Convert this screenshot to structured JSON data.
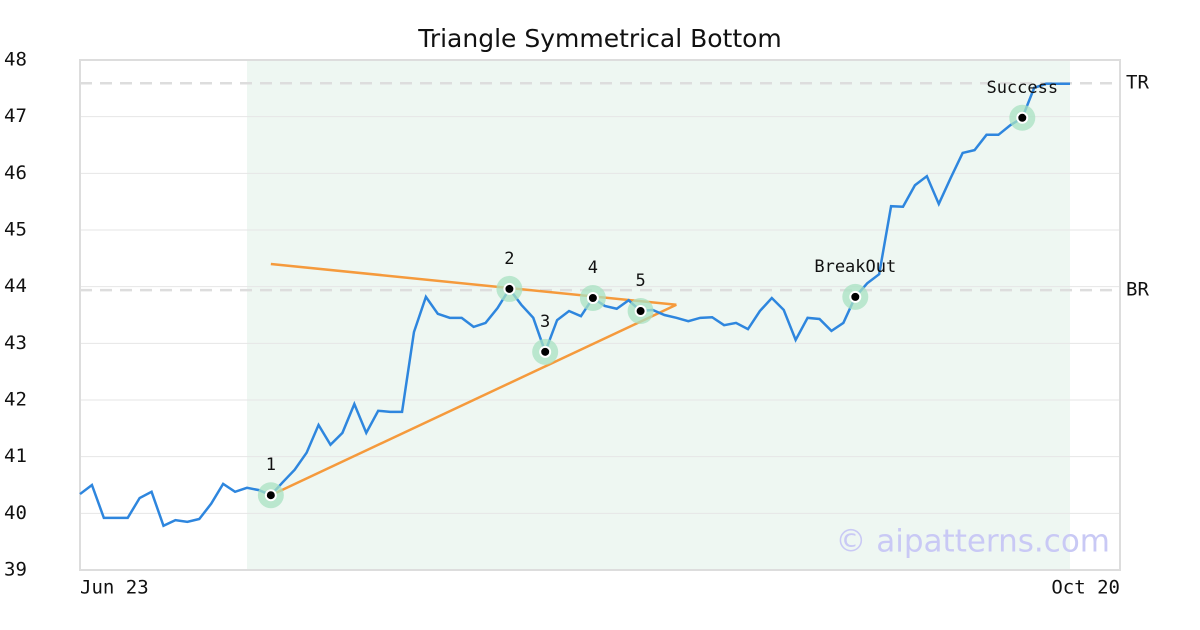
{
  "chart_data": {
    "type": "line",
    "title": "Triangle Symmetrical Bottom",
    "categories": [
      "Jun 23",
      null,
      null,
      null,
      null,
      null,
      null,
      null,
      null,
      null,
      null,
      null,
      null,
      null,
      null,
      null,
      null,
      null,
      null,
      null,
      null,
      null,
      null,
      null,
      null,
      null,
      null,
      null,
      null,
      null,
      null,
      null,
      null,
      null,
      null,
      null,
      null,
      null,
      null,
      null,
      null,
      null,
      null,
      null,
      null,
      null,
      null,
      null,
      null,
      null,
      null,
      null,
      null,
      null,
      null,
      null,
      null,
      null,
      null,
      null,
      null,
      null,
      null,
      null,
      null,
      null,
      null,
      null,
      null,
      null,
      null,
      null,
      null,
      null,
      null,
      null,
      null,
      null,
      null,
      null,
      null,
      null,
      null,
      "Oct 20"
    ],
    "series": [
      {
        "color": "#2e86de",
        "values": [
          40.34,
          40.5,
          39.92,
          39.92,
          39.92,
          40.27,
          40.38,
          39.78,
          39.88,
          39.85,
          39.9,
          40.17,
          40.52,
          40.38,
          40.45,
          40.41,
          40.32,
          40.55,
          40.77,
          41.07,
          41.56,
          41.21,
          41.42,
          41.93,
          41.42,
          41.81,
          41.79,
          41.79,
          43.2,
          43.82,
          43.52,
          43.45,
          43.45,
          43.29,
          43.36,
          43.62,
          43.96,
          43.68,
          43.45,
          42.85,
          43.41,
          43.57,
          43.48,
          43.8,
          43.66,
          43.61,
          43.76,
          43.57,
          43.59,
          43.5,
          43.45,
          43.39,
          43.45,
          43.46,
          43.32,
          43.36,
          43.25,
          43.57,
          43.8,
          43.59,
          43.06,
          43.45,
          43.43,
          43.22,
          43.36,
          43.82,
          44.06,
          44.22,
          45.42,
          45.41,
          45.79,
          45.95,
          45.46,
          45.92,
          46.36,
          46.41,
          46.68,
          46.68,
          46.85,
          46.98,
          47.51,
          47.58,
          47.58,
          47.58
        ]
      }
    ],
    "ylim": [
      39,
      48
    ],
    "yticks": [
      39,
      40,
      41,
      42,
      43,
      44,
      45,
      46,
      47,
      48
    ],
    "grid": true,
    "highlight": {
      "from": 14,
      "to": 83,
      "color": "#eef7f2"
    },
    "reference_lines": [
      {
        "label": "TR",
        "value": 47.59
      },
      {
        "label": "BR",
        "value": 43.94
      }
    ],
    "trendlines": [
      {
        "color": "#f59a3c",
        "x": [
          16,
          50
        ],
        "values": [
          44.4,
          43.68
        ]
      },
      {
        "color": "#f59a3c",
        "x": [
          16,
          50
        ],
        "values": [
          40.32,
          43.68
        ]
      }
    ],
    "markers": [
      {
        "label": "1",
        "index": 16,
        "value": 40.32
      },
      {
        "label": "2",
        "index": 36,
        "value": 43.96
      },
      {
        "label": "3",
        "index": 39,
        "value": 42.85
      },
      {
        "label": "4",
        "index": 43,
        "value": 43.8
      },
      {
        "label": "5",
        "index": 47,
        "value": 43.57
      },
      {
        "label": "BreakOut",
        "index": 65,
        "value": 43.82
      },
      {
        "label": "Success",
        "index": 79,
        "value": 46.98
      }
    ],
    "watermark": "© aipatterns.com"
  }
}
